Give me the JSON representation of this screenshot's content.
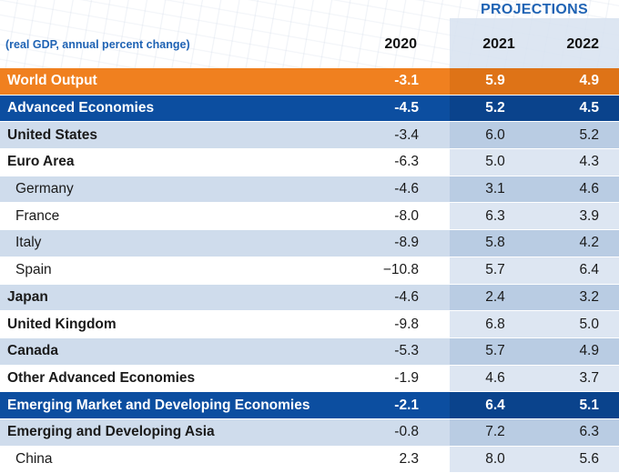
{
  "header": {
    "projections": "PROJECTIONS",
    "units": "(real GDP, annual percent change)",
    "col_2020": "2020",
    "col_2021": "2021",
    "col_2022": "2022"
  },
  "colors": {
    "orange": "#f0801f",
    "navy": "#0c4ea0",
    "light_blue": "#cfdcec",
    "accent_text": "#1f63b4"
  },
  "chart_data": {
    "type": "table",
    "columns": [
      "2020",
      "2021",
      "2022"
    ],
    "rows": [
      {
        "label": "World Output",
        "v2020": "-3.1",
        "v2021": "5.9",
        "v2022": "4.9",
        "style": "orange",
        "indent": false
      },
      {
        "label": "Advanced Economies",
        "v2020": "-4.5",
        "v2021": "5.2",
        "v2022": "4.5",
        "style": "navy",
        "indent": false
      },
      {
        "label": "United States",
        "v2020": "-3.4",
        "v2021": "6.0",
        "v2022": "5.2",
        "style": "alt",
        "indent": false,
        "bold": true
      },
      {
        "label": "Euro Area",
        "v2020": "-6.3",
        "v2021": "5.0",
        "v2022": "4.3",
        "style": "plain",
        "indent": false,
        "bold": true
      },
      {
        "label": "Germany",
        "v2020": "-4.6",
        "v2021": "3.1",
        "v2022": "4.6",
        "style": "alt",
        "indent": true
      },
      {
        "label": "France",
        "v2020": "-8.0",
        "v2021": "6.3",
        "v2022": "3.9",
        "style": "plain",
        "indent": true
      },
      {
        "label": "Italy",
        "v2020": "-8.9",
        "v2021": "5.8",
        "v2022": "4.2",
        "style": "alt",
        "indent": true
      },
      {
        "label": "Spain",
        "v2020": "−10.8",
        "v2021": "5.7",
        "v2022": "6.4",
        "style": "plain",
        "indent": true
      },
      {
        "label": "Japan",
        "v2020": "-4.6",
        "v2021": "2.4",
        "v2022": "3.2",
        "style": "alt",
        "indent": false,
        "bold": true
      },
      {
        "label": "United Kingdom",
        "v2020": "-9.8",
        "v2021": "6.8",
        "v2022": "5.0",
        "style": "plain",
        "indent": false,
        "bold": true
      },
      {
        "label": "Canada",
        "v2020": "-5.3",
        "v2021": "5.7",
        "v2022": "4.9",
        "style": "alt",
        "indent": false,
        "bold": true
      },
      {
        "label": "Other Advanced Economies",
        "v2020": "-1.9",
        "v2021": "4.6",
        "v2022": "3.7",
        "style": "plain",
        "indent": false,
        "bold": true
      },
      {
        "label": "Emerging Market and Developing Economies",
        "v2020": "-2.1",
        "v2021": "6.4",
        "v2022": "5.1",
        "style": "navy",
        "indent": false
      },
      {
        "label": "Emerging and Developing Asia",
        "v2020": "-0.8",
        "v2021": "7.2",
        "v2022": "6.3",
        "style": "alt",
        "indent": false,
        "bold": true
      },
      {
        "label": "China",
        "v2020": "2.3",
        "v2021": "8.0",
        "v2022": "5.6",
        "style": "plain",
        "indent": true
      }
    ]
  }
}
